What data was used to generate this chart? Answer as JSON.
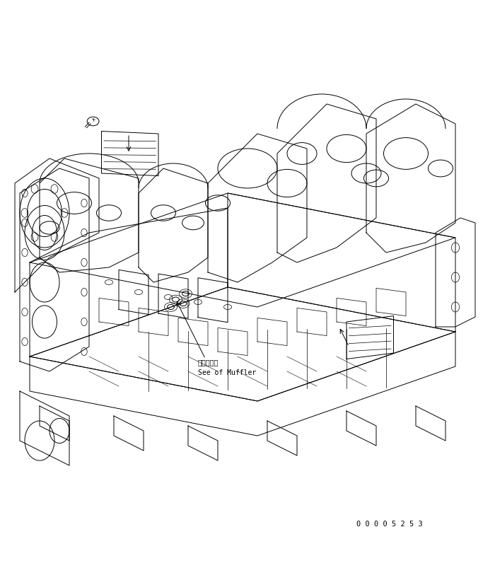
{
  "background_color": "#ffffff",
  "line_color": "#000000",
  "figure_width": 7.0,
  "figure_height": 8.28,
  "dpi": 100,
  "serial_number": "0 0 0 0 5 2 5 3",
  "annotation_japanese": "マフラ参照",
  "annotation_english": "See of Muffler"
}
